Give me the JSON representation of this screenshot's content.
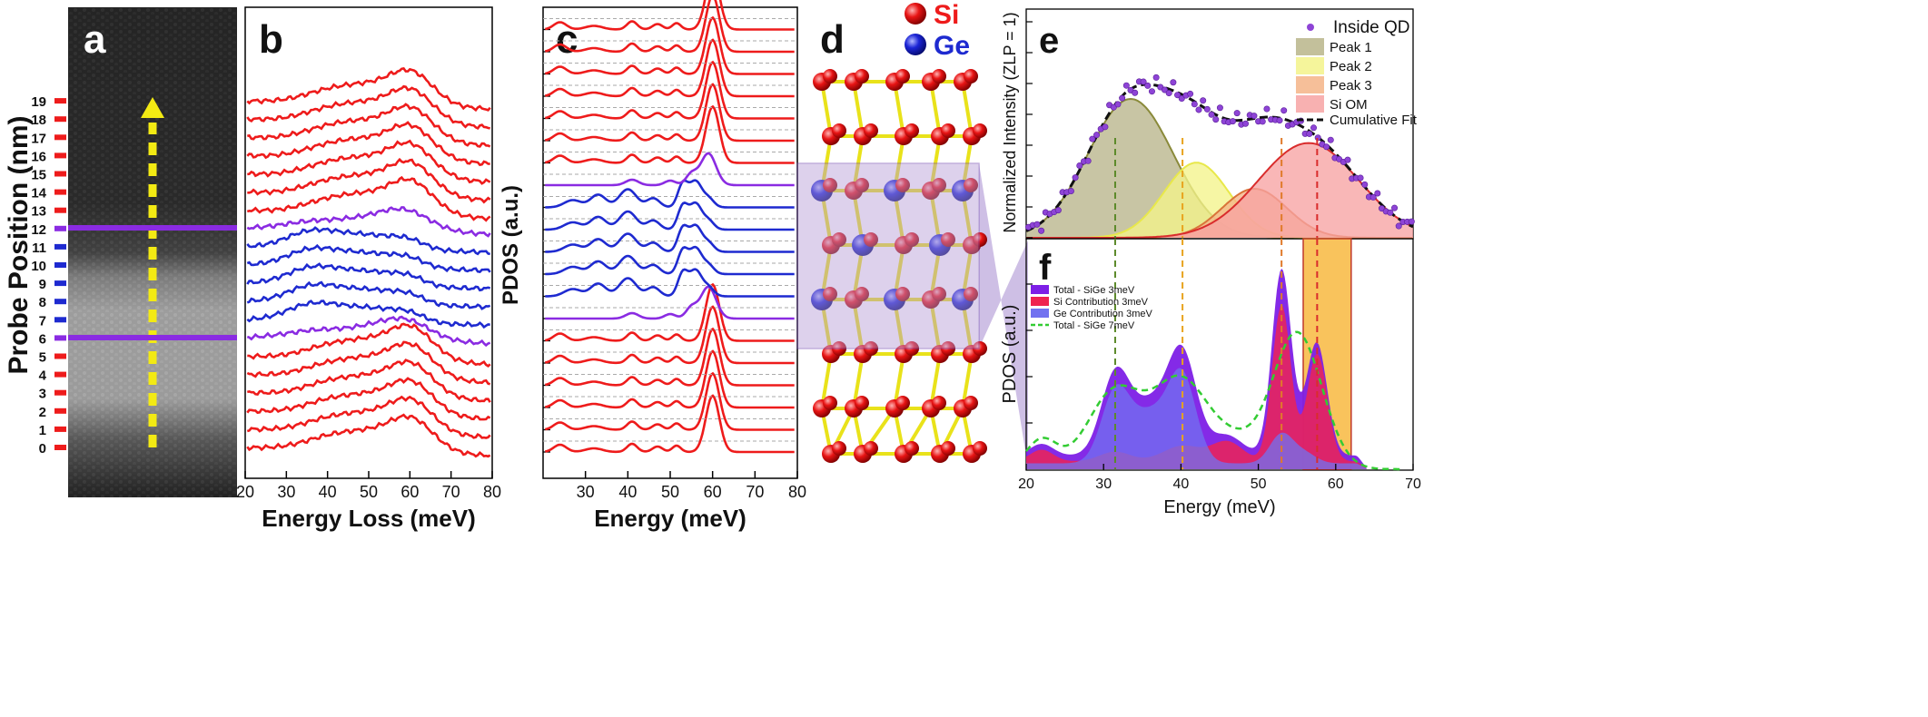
{
  "colors": {
    "si": "#ee1b1b",
    "ge": "#1e2ad0",
    "interface": "#8a2be2",
    "arrow": "#f3ea13",
    "fit": "#111111",
    "peak1": "#b9b58a",
    "peak2": "#f3f38a",
    "peak3": "#f4b487",
    "si_om": "#f7a3a3",
    "ge_contrib": "#7272f0",
    "smooth": "#33cc33",
    "band_fill": "#f9c35c"
  },
  "chart_data": [
    {
      "panel": "a",
      "type": "image",
      "ylabel": "Probe Position (nm)",
      "positions": [
        "0",
        "1",
        "2",
        "3",
        "4",
        "5",
        "6",
        "7",
        "8",
        "9",
        "10",
        "11",
        "12",
        "13",
        "14",
        "15",
        "16",
        "17",
        "18",
        "19"
      ],
      "marker_material": [
        "Si",
        "Si",
        "Si",
        "Si",
        "Si",
        "Si",
        "interface",
        "Ge",
        "Ge",
        "Ge",
        "Ge",
        "Ge",
        "interface",
        "Si",
        "Si",
        "Si",
        "Si",
        "Si",
        "Si",
        "Si"
      ],
      "interface_lines_nm": [
        6,
        12
      ]
    },
    {
      "panel": "b",
      "type": "line",
      "xlabel": "Energy Loss (meV)",
      "xlim": [
        20,
        80
      ],
      "xticks": [
        "20",
        "30",
        "40",
        "50",
        "60",
        "70",
        "80"
      ],
      "series_count": 20,
      "series_material": [
        "Si",
        "Si",
        "Si",
        "Si",
        "Si",
        "Si",
        "interface",
        "Ge",
        "Ge",
        "Ge",
        "Ge",
        "Ge",
        "interface",
        "Si",
        "Si",
        "Si",
        "Si",
        "Si",
        "Si",
        "Si"
      ],
      "peak_energy_meV": {
        "Si": 60,
        "Ge_main": 36,
        "Ge_secondary": 52
      }
    },
    {
      "panel": "c",
      "type": "line",
      "xlabel": "Energy (meV)",
      "ylabel": "PDOS (a.u.)",
      "xlim": [
        20,
        80
      ],
      "xticks": [
        "30",
        "40",
        "50",
        "60",
        "70",
        "80"
      ],
      "series_count": 20,
      "series_material": [
        "Si",
        "Si",
        "Si",
        "Si",
        "Si",
        "Si",
        "interface",
        "Ge",
        "Ge",
        "Ge",
        "Ge",
        "Ge",
        "interface",
        "Si",
        "Si",
        "Si",
        "Si",
        "Si",
        "Si",
        "Si"
      ],
      "peak_energy_meV": {
        "Si": 60,
        "Ge": [
          33,
          40,
          53,
          56
        ]
      }
    },
    {
      "panel": "d",
      "type": "structure",
      "legend": [
        {
          "label": "Si",
          "color": "#ee1b1b"
        },
        {
          "label": "Ge",
          "color": "#1e2ad0"
        }
      ]
    },
    {
      "panel": "e",
      "type": "area",
      "ylabel": "Normalized Intensity (ZLP = 1)",
      "xlim": [
        20,
        70
      ],
      "legend": [
        "Inside QD",
        "Peak 1",
        "Peak 2",
        "Peak 3",
        "Si OM",
        "Cumulative Fit"
      ],
      "peaks": [
        {
          "name": "Peak 1",
          "center": 33.5,
          "height": 0.85,
          "width": 5.5
        },
        {
          "name": "Peak 2",
          "center": 42,
          "height": 0.46,
          "width": 4.2
        },
        {
          "name": "Peak 3",
          "center": 49.5,
          "height": 0.3,
          "width": 4.2
        },
        {
          "name": "Si OM",
          "center": 56.5,
          "height": 0.58,
          "width": 6.5
        }
      ],
      "guide_lines_meV": [
        31.5,
        40.2,
        53.0,
        57.6
      ]
    },
    {
      "panel": "f",
      "type": "area",
      "xlabel": "Energy (meV)",
      "ylabel": "PDOS (a.u.)",
      "xlim": [
        20,
        70
      ],
      "xticks": [
        "20",
        "30",
        "40",
        "50",
        "60",
        "70"
      ],
      "legend": [
        "Total - SiGe 3meV",
        "Si Contribution 3meV",
        "Ge Contribution 3meV",
        "Total - SiGe 7meV"
      ],
      "highlight_band_meV": [
        55.8,
        62.0
      ],
      "guide_lines_meV": [
        31.5,
        40.2,
        53.0,
        57.6
      ]
    }
  ],
  "labels": {
    "panel_a": "a",
    "panel_b": "b",
    "panel_c": "c",
    "panel_d": "d",
    "panel_e": "e",
    "panel_f": "f",
    "ylabel_a": "Probe Position (nm)",
    "xlabel_b": "Energy Loss (meV)",
    "ylabel_c": "PDOS (a.u.)",
    "xlabel_c": "Energy (meV)",
    "legend_si": "Si",
    "legend_ge": "Ge",
    "ylabel_e": "Normalized Intensity (ZLP = 1)",
    "legend_e": [
      "Inside QD",
      "Peak 1",
      "Peak 2",
      "Peak 3",
      "Si OM",
      "Cumulative Fit"
    ],
    "legend_f": [
      "Total - SiGe 3meV",
      "Si Contribution 3meV",
      "Ge Contribution 3meV",
      "Total - SiGe 7meV"
    ],
    "ylabel_f": "PDOS (a.u.)",
    "xlabel_f": "Energy (meV)"
  }
}
